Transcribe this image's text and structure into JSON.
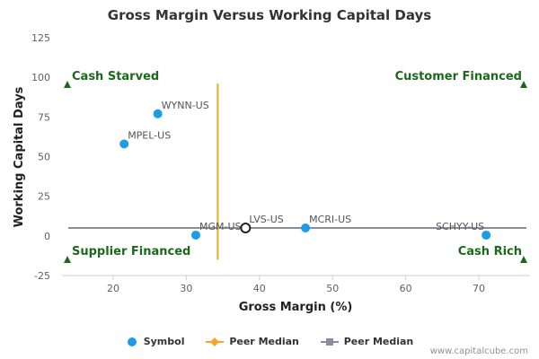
{
  "chart_data": {
    "type": "scatter",
    "title": "Gross Margin Versus Working Capital Days",
    "xlabel": "Gross Margin (%)",
    "ylabel": "Working Capital Days",
    "xlim": [
      13,
      77
    ],
    "ylim": [
      -25,
      125
    ],
    "x_ticks": [
      20,
      30,
      40,
      50,
      60,
      70
    ],
    "y_ticks": [
      125,
      100,
      75,
      50,
      25,
      0,
      -25
    ],
    "grid": false,
    "legend_position": "bottom",
    "points": [
      {
        "label": "WYNN-US",
        "x": 26.1,
        "y": 77,
        "highlight": false
      },
      {
        "label": "MPEL-US",
        "x": 21.5,
        "y": 58,
        "highlight": false
      },
      {
        "label": "MGM-US",
        "x": 31.3,
        "y": 0.5,
        "highlight": false
      },
      {
        "label": "LVS-US",
        "x": 38.1,
        "y": 5,
        "highlight": true
      },
      {
        "label": "MCRI-US",
        "x": 46.3,
        "y": 5,
        "highlight": false
      },
      {
        "label": "SCHYY-US",
        "x": 71.0,
        "y": 0.5,
        "highlight": false
      }
    ],
    "peer_median_x": 34.3,
    "peer_median_y": 5,
    "quadrant_labels": {
      "top_left": "Cash Starved",
      "top_right": "Customer Financed",
      "bottom_left": "Supplier Financed",
      "bottom_right": "Cash Rich"
    },
    "legend": [
      {
        "name": "Symbol",
        "color": "#1e9be9",
        "marker": "circle"
      },
      {
        "name": "Peer Median",
        "color": "#f5a623",
        "marker": "diamond-line"
      },
      {
        "name": "Peer Median",
        "color": "#8c8c9e",
        "marker": "square-line"
      }
    ],
    "colors": {
      "point": "#1e9be9",
      "median_vertical": "#f5a623",
      "median_horizontal": "#8c8c9e",
      "quadrant": "#1b6a1b"
    }
  },
  "footer": "www.capitalcube.com"
}
